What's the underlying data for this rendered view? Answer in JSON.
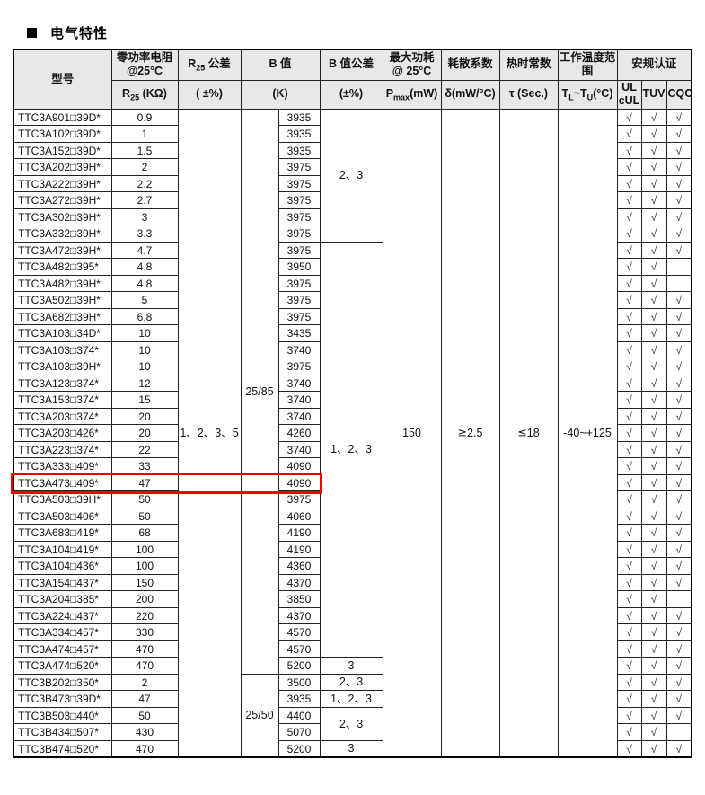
{
  "title": {
    "bullet_icon": "black-square",
    "text": "电气特性"
  },
  "colors": {
    "highlight_border": "#f20000",
    "header_bg": "#e8e8e8"
  },
  "check_mark": "√",
  "table": {
    "header": {
      "model": "型号",
      "zero_power_lines": [
        "零功率电阻",
        "@25°C"
      ],
      "r25_tol_rich": [
        {
          "t": "R"
        },
        {
          "t": "25",
          "s": 1
        },
        {
          "t": " 公差"
        }
      ],
      "b_value": "B 值",
      "b_tol": "B 值公差",
      "max_power_lines": [
        "最大功耗",
        "@ 25°C"
      ],
      "dissipation": "耗散系数",
      "thermal_time": "热时常数",
      "op_temp": "工作温度范围",
      "safety": "安规认证",
      "sub_r25_rich": [
        {
          "t": "R"
        },
        {
          "t": "25",
          "s": 1
        },
        {
          "t": " (KΩ)"
        }
      ],
      "sub_tol1": "( ±%)",
      "sub_k": "(K)",
      "sub_tol2": "(±%)",
      "sub_pmax_rich": [
        {
          "t": "P"
        },
        {
          "t": "max",
          "s": 1
        },
        {
          "t": "(mW)"
        }
      ],
      "sub_delta": "δ(mW/°C)",
      "sub_tau": "τ (Sec.)",
      "sub_temp_rich": [
        {
          "t": "T"
        },
        {
          "t": "L",
          "s": 1
        },
        {
          "t": "~T"
        },
        {
          "t": "U",
          "s": 1
        },
        {
          "t": "(°C)"
        }
      ],
      "cert_ul_lines": [
        "UL",
        "cUL"
      ],
      "cert_tuv": "TUV",
      "cert_cqc": "CQC"
    },
    "merged": {
      "r25_tolerance": [
        {
          "start": 0,
          "span": 39,
          "text": "1、2、3、5"
        }
      ],
      "b_ref": [
        {
          "start": 0,
          "span": 34,
          "text": "25/85"
        },
        {
          "start": 34,
          "span": 5,
          "text": "25/50"
        }
      ],
      "b_tolerance": [
        {
          "start": 0,
          "span": 8,
          "text": "2、3"
        },
        {
          "start": 8,
          "span": 25,
          "text": "1、2、3"
        },
        {
          "start": 33,
          "span": 1,
          "text": "3"
        },
        {
          "start": 34,
          "span": 1,
          "text": "2、3"
        },
        {
          "start": 35,
          "span": 1,
          "text": "1、2、3"
        },
        {
          "start": 36,
          "span": 2,
          "text": "2、3"
        },
        {
          "start": 38,
          "span": 1,
          "text": "3"
        }
      ],
      "pmax": [
        {
          "start": 0,
          "span": 39,
          "text": "150"
        }
      ],
      "dissipation": [
        {
          "start": 0,
          "span": 39,
          "text": "≧2.5"
        }
      ],
      "thermal_time": [
        {
          "start": 0,
          "span": 39,
          "text": "≦18"
        }
      ],
      "temp_range": [
        {
          "start": 0,
          "span": 39,
          "text": "-40~+125"
        }
      ]
    },
    "rows": [
      {
        "model": "TTC3A901□39D*",
        "r25": "0.9",
        "b": "3935",
        "ul": true,
        "tuv": true,
        "cqc": true
      },
      {
        "model": "TTC3A102□39D*",
        "r25": "1",
        "b": "3935",
        "ul": true,
        "tuv": true,
        "cqc": true
      },
      {
        "model": "TTC3A152□39D*",
        "r25": "1.5",
        "b": "3935",
        "ul": true,
        "tuv": true,
        "cqc": true
      },
      {
        "model": "TTC3A202□39H*",
        "r25": "2",
        "b": "3975",
        "ul": true,
        "tuv": true,
        "cqc": true
      },
      {
        "model": "TTC3A222□39H*",
        "r25": "2.2",
        "b": "3975",
        "ul": true,
        "tuv": true,
        "cqc": true
      },
      {
        "model": "TTC3A272□39H*",
        "r25": "2.7",
        "b": "3975",
        "ul": true,
        "tuv": true,
        "cqc": true
      },
      {
        "model": "TTC3A302□39H*",
        "r25": "3",
        "b": "3975",
        "ul": true,
        "tuv": true,
        "cqc": true
      },
      {
        "model": "TTC3A332□39H*",
        "r25": "3.3",
        "b": "3975",
        "ul": true,
        "tuv": true,
        "cqc": true
      },
      {
        "model": "TTC3A472□39H*",
        "r25": "4.7",
        "b": "3975",
        "ul": true,
        "tuv": true,
        "cqc": true
      },
      {
        "model": "TTC3A482□395*",
        "r25": "4.8",
        "b": "3950",
        "ul": true,
        "tuv": true,
        "cqc": false
      },
      {
        "model": "TTC3A482□39H*",
        "r25": "4.8",
        "b": "3975",
        "ul": true,
        "tuv": true,
        "cqc": false
      },
      {
        "model": "TTC3A502□39H*",
        "r25": "5",
        "b": "3975",
        "ul": true,
        "tuv": true,
        "cqc": true
      },
      {
        "model": "TTC3A682□39H*",
        "r25": "6.8",
        "b": "3975",
        "ul": true,
        "tuv": true,
        "cqc": true
      },
      {
        "model": "TTC3A103□34D*",
        "r25": "10",
        "b": "3435",
        "ul": true,
        "tuv": true,
        "cqc": true
      },
      {
        "model": "TTC3A103□374*",
        "r25": "10",
        "b": "3740",
        "ul": true,
        "tuv": true,
        "cqc": true
      },
      {
        "model": "TTC3A103□39H*",
        "r25": "10",
        "b": "3975",
        "ul": true,
        "tuv": true,
        "cqc": true
      },
      {
        "model": "TTC3A123□374*",
        "r25": "12",
        "b": "3740",
        "ul": true,
        "tuv": true,
        "cqc": true
      },
      {
        "model": "TTC3A153□374*",
        "r25": "15",
        "b": "3740",
        "ul": true,
        "tuv": true,
        "cqc": true
      },
      {
        "model": "TTC3A203□374*",
        "r25": "20",
        "b": "3740",
        "ul": true,
        "tuv": true,
        "cqc": true
      },
      {
        "model": "TTC3A203□426*",
        "r25": "20",
        "b": "4260",
        "ul": true,
        "tuv": true,
        "cqc": true
      },
      {
        "model": "TTC3A223□374*",
        "r25": "22",
        "b": "3740",
        "ul": true,
        "tuv": true,
        "cqc": true
      },
      {
        "model": "TTC3A333□409*",
        "r25": "33",
        "b": "4090",
        "ul": true,
        "tuv": true,
        "cqc": true
      },
      {
        "model": "TTC3A473□409*",
        "r25": "47",
        "b": "4090",
        "ul": true,
        "tuv": true,
        "cqc": true,
        "highlight": true
      },
      {
        "model": "TTC3A503□39H*",
        "r25": "50",
        "b": "3975",
        "ul": true,
        "tuv": true,
        "cqc": true
      },
      {
        "model": "TTC3A503□406*",
        "r25": "50",
        "b": "4060",
        "ul": true,
        "tuv": true,
        "cqc": true
      },
      {
        "model": "TTC3A683□419*",
        "r25": "68",
        "b": "4190",
        "ul": true,
        "tuv": true,
        "cqc": true
      },
      {
        "model": "TTC3A104□419*",
        "r25": "100",
        "b": "4190",
        "ul": true,
        "tuv": true,
        "cqc": true
      },
      {
        "model": "TTC3A104□436*",
        "r25": "100",
        "b": "4360",
        "ul": true,
        "tuv": true,
        "cqc": true
      },
      {
        "model": "TTC3A154□437*",
        "r25": "150",
        "b": "4370",
        "ul": true,
        "tuv": true,
        "cqc": true
      },
      {
        "model": "TTC3A204□385*",
        "r25": "200",
        "b": "3850",
        "ul": true,
        "tuv": true,
        "cqc": false
      },
      {
        "model": "TTC3A224□437*",
        "r25": "220",
        "b": "4370",
        "ul": true,
        "tuv": true,
        "cqc": true
      },
      {
        "model": "TTC3A334□457*",
        "r25": "330",
        "b": "4570",
        "ul": true,
        "tuv": true,
        "cqc": true
      },
      {
        "model": "TTC3A474□457*",
        "r25": "470",
        "b": "4570",
        "ul": true,
        "tuv": true,
        "cqc": true
      },
      {
        "model": "TTC3A474□520*",
        "r25": "470",
        "b": "5200",
        "ul": true,
        "tuv": true,
        "cqc": true
      },
      {
        "model": "TTC3B202□350*",
        "r25": "2",
        "b": "3500",
        "ul": true,
        "tuv": true,
        "cqc": true
      },
      {
        "model": "TTC3B473□39D*",
        "r25": "47",
        "b": "3935",
        "ul": true,
        "tuv": true,
        "cqc": true
      },
      {
        "model": "TTC3B503□440*",
        "r25": "50",
        "b": "4400",
        "ul": true,
        "tuv": true,
        "cqc": true
      },
      {
        "model": "TTC3B434□507*",
        "r25": "430",
        "b": "5070",
        "ul": true,
        "tuv": true,
        "cqc": false
      },
      {
        "model": "TTC3B474□520*",
        "r25": "470",
        "b": "5200",
        "ul": true,
        "tuv": true,
        "cqc": true
      }
    ]
  }
}
